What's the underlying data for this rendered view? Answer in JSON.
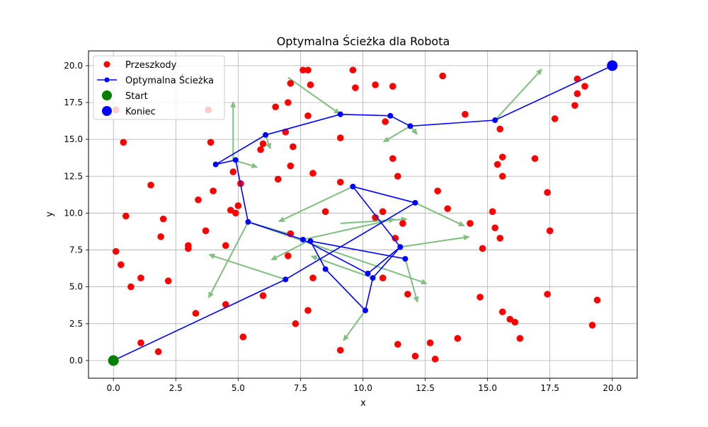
{
  "chart_data": {
    "type": "scatter",
    "title": "Optymalna Ścieżka dla Robota",
    "xlabel": "x",
    "ylabel": "y",
    "xlim": [
      -1.0,
      21.0
    ],
    "ylim": [
      -1.2,
      21.0
    ],
    "x_ticks": [
      0.0,
      2.5,
      5.0,
      7.5,
      10.0,
      12.5,
      15.0,
      17.5,
      20.0
    ],
    "y_ticks": [
      0.0,
      2.5,
      5.0,
      7.5,
      10.0,
      12.5,
      15.0,
      17.5,
      20.0
    ],
    "x_tick_labels": [
      "0.0",
      "2.5",
      "5.0",
      "7.5",
      "10.0",
      "12.5",
      "15.0",
      "17.5",
      "20.0"
    ],
    "y_tick_labels": [
      "0.0",
      "2.5",
      "5.0",
      "7.5",
      "10.0",
      "12.5",
      "15.0",
      "17.5",
      "20.0"
    ],
    "grid": true,
    "legend_position": "top-left",
    "colors": {
      "obstacles": "#ff0000",
      "path": "#0000ff",
      "start": "#008000",
      "end": "#0000ff",
      "arrows": "#7fbf7f",
      "grid": "#b0b0b0"
    },
    "legend": [
      {
        "label": "Przeszkody",
        "kind": "marker",
        "color": "#ff0000"
      },
      {
        "label": "Optymalna Ścieżka",
        "kind": "line-marker",
        "color": "#0000ff"
      },
      {
        "label": "Start",
        "kind": "big-marker",
        "color": "#008000"
      },
      {
        "label": "Koniec",
        "kind": "big-marker",
        "color": "#0000ff"
      }
    ],
    "obstacles": [
      [
        0.1,
        17.0
      ],
      [
        0.4,
        14.8
      ],
      [
        0.1,
        7.4
      ],
      [
        0.3,
        6.5
      ],
      [
        0.5,
        9.8
      ],
      [
        0.7,
        5.0
      ],
      [
        1.1,
        5.6
      ],
      [
        1.1,
        1.2
      ],
      [
        1.5,
        11.9
      ],
      [
        1.8,
        0.6
      ],
      [
        1.9,
        8.4
      ],
      [
        2.0,
        9.6
      ],
      [
        2.2,
        5.4
      ],
      [
        3.0,
        7.8
      ],
      [
        3.0,
        7.6
      ],
      [
        3.3,
        3.2
      ],
      [
        3.4,
        10.9
      ],
      [
        3.7,
        8.8
      ],
      [
        3.8,
        17.0
      ],
      [
        3.9,
        14.8
      ],
      [
        4.0,
        11.5
      ],
      [
        4.5,
        7.8
      ],
      [
        4.5,
        3.8
      ],
      [
        4.7,
        10.2
      ],
      [
        4.8,
        12.8
      ],
      [
        4.9,
        10.0
      ],
      [
        5.0,
        10.5
      ],
      [
        5.1,
        12.0
      ],
      [
        5.2,
        1.6
      ],
      [
        5.9,
        14.3
      ],
      [
        6.0,
        14.7
      ],
      [
        6.0,
        4.4
      ],
      [
        6.5,
        17.2
      ],
      [
        6.6,
        12.3
      ],
      [
        6.9,
        15.5
      ],
      [
        7.0,
        7.1
      ],
      [
        7.0,
        17.5
      ],
      [
        7.1,
        8.6
      ],
      [
        7.1,
        13.2
      ],
      [
        7.1,
        18.8
      ],
      [
        7.2,
        14.5
      ],
      [
        7.3,
        2.5
      ],
      [
        7.6,
        19.7
      ],
      [
        7.8,
        19.7
      ],
      [
        7.8,
        16.6
      ],
      [
        7.8,
        3.4
      ],
      [
        7.9,
        18.7
      ],
      [
        8.0,
        12.7
      ],
      [
        8.0,
        5.6
      ],
      [
        8.5,
        10.1
      ],
      [
        9.1,
        15.1
      ],
      [
        9.1,
        12.1
      ],
      [
        9.1,
        0.7
      ],
      [
        9.6,
        19.7
      ],
      [
        9.7,
        18.5
      ],
      [
        10.5,
        9.7
      ],
      [
        10.5,
        18.7
      ],
      [
        10.8,
        10.1
      ],
      [
        10.8,
        5.6
      ],
      [
        10.9,
        16.2
      ],
      [
        11.2,
        13.7
      ],
      [
        11.2,
        18.6
      ],
      [
        11.3,
        8.3
      ],
      [
        11.4,
        12.5
      ],
      [
        11.4,
        1.1
      ],
      [
        11.6,
        9.3
      ],
      [
        11.8,
        4.5
      ],
      [
        12.1,
        0.3
      ],
      [
        12.7,
        1.2
      ],
      [
        12.9,
        0.1
      ],
      [
        13.0,
        11.5
      ],
      [
        13.2,
        19.3
      ],
      [
        13.4,
        10.3
      ],
      [
        13.8,
        1.5
      ],
      [
        14.1,
        16.7
      ],
      [
        14.3,
        9.3
      ],
      [
        14.7,
        4.3
      ],
      [
        14.8,
        7.6
      ],
      [
        15.2,
        10.1
      ],
      [
        15.3,
        9.0
      ],
      [
        15.4,
        13.3
      ],
      [
        15.5,
        8.3
      ],
      [
        15.5,
        15.7
      ],
      [
        15.6,
        3.3
      ],
      [
        15.6,
        13.8
      ],
      [
        15.6,
        12.5
      ],
      [
        15.9,
        2.8
      ],
      [
        16.1,
        2.6
      ],
      [
        16.3,
        1.5
      ],
      [
        16.9,
        13.7
      ],
      [
        17.4,
        11.4
      ],
      [
        17.4,
        4.5
      ],
      [
        17.5,
        8.8
      ],
      [
        17.7,
        16.4
      ],
      [
        18.5,
        17.3
      ],
      [
        18.6,
        19.1
      ],
      [
        18.6,
        18.1
      ],
      [
        18.9,
        18.6
      ],
      [
        19.2,
        2.4
      ],
      [
        19.4,
        4.1
      ]
    ],
    "path": [
      [
        0.0,
        0.0
      ],
      [
        6.9,
        5.5
      ],
      [
        12.1,
        10.7
      ],
      [
        9.6,
        11.8
      ],
      [
        11.5,
        7.7
      ],
      [
        10.2,
        5.9
      ],
      [
        7.6,
        8.2
      ],
      [
        5.4,
        9.4
      ],
      [
        4.9,
        13.6
      ],
      [
        4.1,
        13.3
      ],
      [
        6.1,
        15.3
      ],
      [
        9.1,
        16.7
      ],
      [
        11.1,
        16.6
      ],
      [
        11.9,
        15.9
      ],
      [
        15.3,
        16.3
      ],
      [
        20.0,
        20.0
      ]
    ],
    "path_extra_segments": [
      [
        [
          7.9,
          8.1
        ],
        [
          8.5,
          6.2
        ]
      ],
      [
        [
          8.5,
          6.2
        ],
        [
          10.1,
          3.4
        ]
      ],
      [
        [
          10.1,
          3.4
        ],
        [
          10.4,
          5.6
        ]
      ],
      [
        [
          10.4,
          5.6
        ],
        [
          11.5,
          7.7
        ]
      ],
      [
        [
          7.9,
          8.1
        ],
        [
          11.7,
          6.9
        ]
      ]
    ],
    "path_extra_points": [
      [
        7.9,
        8.1
      ],
      [
        8.5,
        6.2
      ],
      [
        10.1,
        3.4
      ],
      [
        10.4,
        5.6
      ],
      [
        11.7,
        6.9
      ]
    ],
    "start": [
      0.0,
      0.0
    ],
    "end": [
      20.0,
      20.0
    ],
    "arrows": [
      [
        [
          7.0,
          19.2
        ],
        [
          9.1,
          16.7
        ]
      ],
      [
        [
          9.1,
          16.7
        ],
        [
          9.1,
          16.7
        ]
      ],
      [
        [
          4.8,
          13.6
        ],
        [
          4.8,
          17.6
        ]
      ],
      [
        [
          4.8,
          13.6
        ],
        [
          5.8,
          13.1
        ]
      ],
      [
        [
          6.1,
          15.3
        ],
        [
          6.3,
          14.3
        ]
      ],
      [
        [
          5.4,
          9.4
        ],
        [
          3.8,
          4.2
        ]
      ],
      [
        [
          5.4,
          9.4
        ],
        [
          7.2,
          8.5
        ]
      ],
      [
        [
          5.4,
          9.4
        ],
        [
          12.6,
          5.2
        ]
      ],
      [
        [
          6.9,
          5.5
        ],
        [
          3.8,
          7.2
        ]
      ],
      [
        [
          9.6,
          11.8
        ],
        [
          6.6,
          9.4
        ]
      ],
      [
        [
          12.1,
          10.7
        ],
        [
          14.1,
          9.1
        ]
      ],
      [
        [
          11.5,
          7.7
        ],
        [
          14.3,
          8.4
        ]
      ],
      [
        [
          11.7,
          6.9
        ],
        [
          12.2,
          3.9
        ]
      ],
      [
        [
          10.1,
          3.4
        ],
        [
          9.2,
          1.3
        ]
      ],
      [
        [
          10.4,
          5.6
        ],
        [
          7.9,
          7.1
        ]
      ],
      [
        [
          7.6,
          8.2
        ],
        [
          11.3,
          9.6
        ]
      ],
      [
        [
          9.1,
          9.3
        ],
        [
          11.8,
          9.6
        ]
      ],
      [
        [
          7.8,
          8.1
        ],
        [
          6.3,
          6.8
        ]
      ],
      [
        [
          11.9,
          15.9
        ],
        [
          10.8,
          14.8
        ]
      ],
      [
        [
          11.9,
          15.9
        ],
        [
          12.2,
          15.3
        ]
      ],
      [
        [
          15.3,
          16.3
        ],
        [
          17.2,
          19.8
        ]
      ]
    ]
  }
}
